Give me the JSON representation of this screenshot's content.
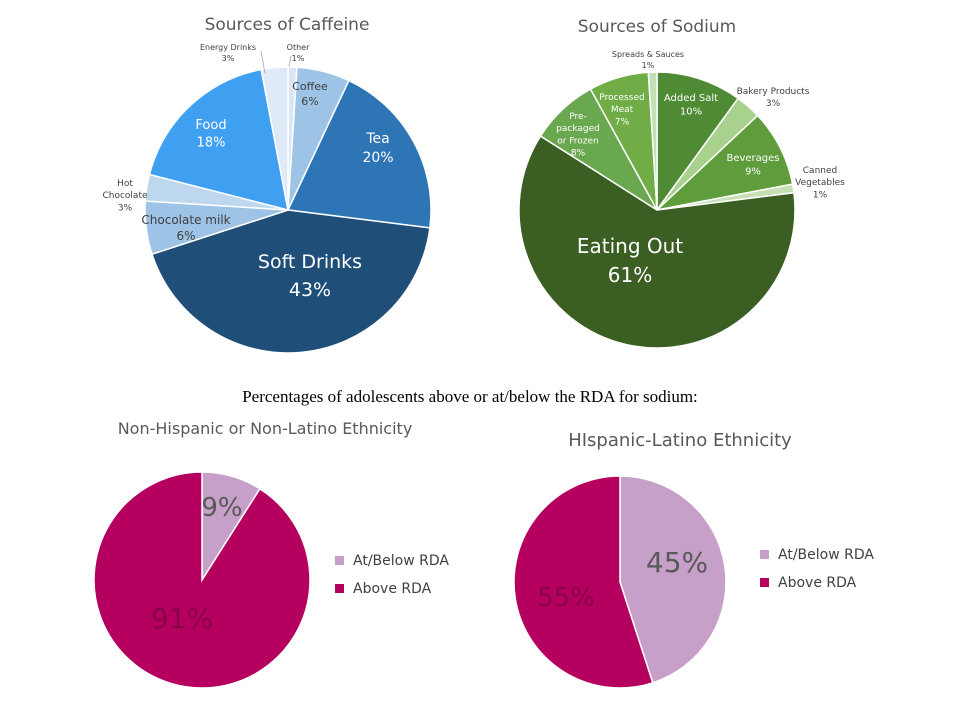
{
  "caption": "Percentages of adolescents above or at/below the RDA for sodium:",
  "chart_data": [
    {
      "type": "pie",
      "title": "Sources of Caffeine",
      "slices": [
        {
          "label": "Other",
          "value": 1,
          "pct": "1%",
          "color": "#dbe6f4"
        },
        {
          "label": "Coffee",
          "value": 6,
          "pct": "6%",
          "color": "#9dc3e6"
        },
        {
          "label": "Tea",
          "value": 20,
          "pct": "20%",
          "color": "#2e75b6"
        },
        {
          "label": "Soft Drinks",
          "value": 43,
          "pct": "43%",
          "color": "#1f4e79"
        },
        {
          "label": "Chocolate milk",
          "value": 6,
          "pct": "6%",
          "color": "#9dc3e6"
        },
        {
          "label": "Hot Chocolate",
          "value": 3,
          "pct": "3%",
          "color": "#bdd7ee"
        },
        {
          "label": "Food",
          "value": 18,
          "pct": "18%",
          "color": "#3fa0f2"
        },
        {
          "label": "Energy Drinks",
          "value": 3,
          "pct": "3%",
          "color": "#deebf7"
        }
      ]
    },
    {
      "type": "pie",
      "title": "Sources of Sodium",
      "slices": [
        {
          "label": "Added Salt",
          "value": 10,
          "pct": "10%",
          "color": "#4f8a34"
        },
        {
          "label": "Bakery Products",
          "value": 3,
          "pct": "3%",
          "color": "#a9d18e"
        },
        {
          "label": "Beverages",
          "value": 9,
          "pct": "9%",
          "color": "#5e9c3c"
        },
        {
          "label": "Canned Vegetables",
          "value": 1,
          "pct": "1%",
          "color": "#c5e0b4"
        },
        {
          "label": "Eating Out",
          "value": 61,
          "pct": "61%",
          "color": "#3b5e23"
        },
        {
          "label": "Pre-packaged or Frozen",
          "value": 8,
          "pct": "8%",
          "color": "#6aa84f"
        },
        {
          "label": "Processed Meat",
          "value": 7,
          "pct": "7%",
          "color": "#70ad47"
        },
        {
          "label": "Spreads & Sauces",
          "value": 1,
          "pct": "1%",
          "color": "#c5e0b4"
        }
      ]
    },
    {
      "type": "pie",
      "title": "Non-Hispanic or Non-Latino Ethnicity",
      "legend_position": "right",
      "slices": [
        {
          "label": "At/Below RDA",
          "value": 9,
          "pct": "9%",
          "color": "#c6a0c8"
        },
        {
          "label": "Above RDA",
          "value": 91,
          "pct": "91%",
          "color": "#b5005f"
        }
      ]
    },
    {
      "type": "pie",
      "title": "HIspanic-Latino Ethnicity",
      "legend_position": "right",
      "slices": [
        {
          "label": "At/Below RDA",
          "value": 45,
          "pct": "45%",
          "color": "#c6a0c8"
        },
        {
          "label": "Above RDA",
          "value": 55,
          "pct": "55%",
          "color": "#b5005f"
        }
      ]
    }
  ]
}
